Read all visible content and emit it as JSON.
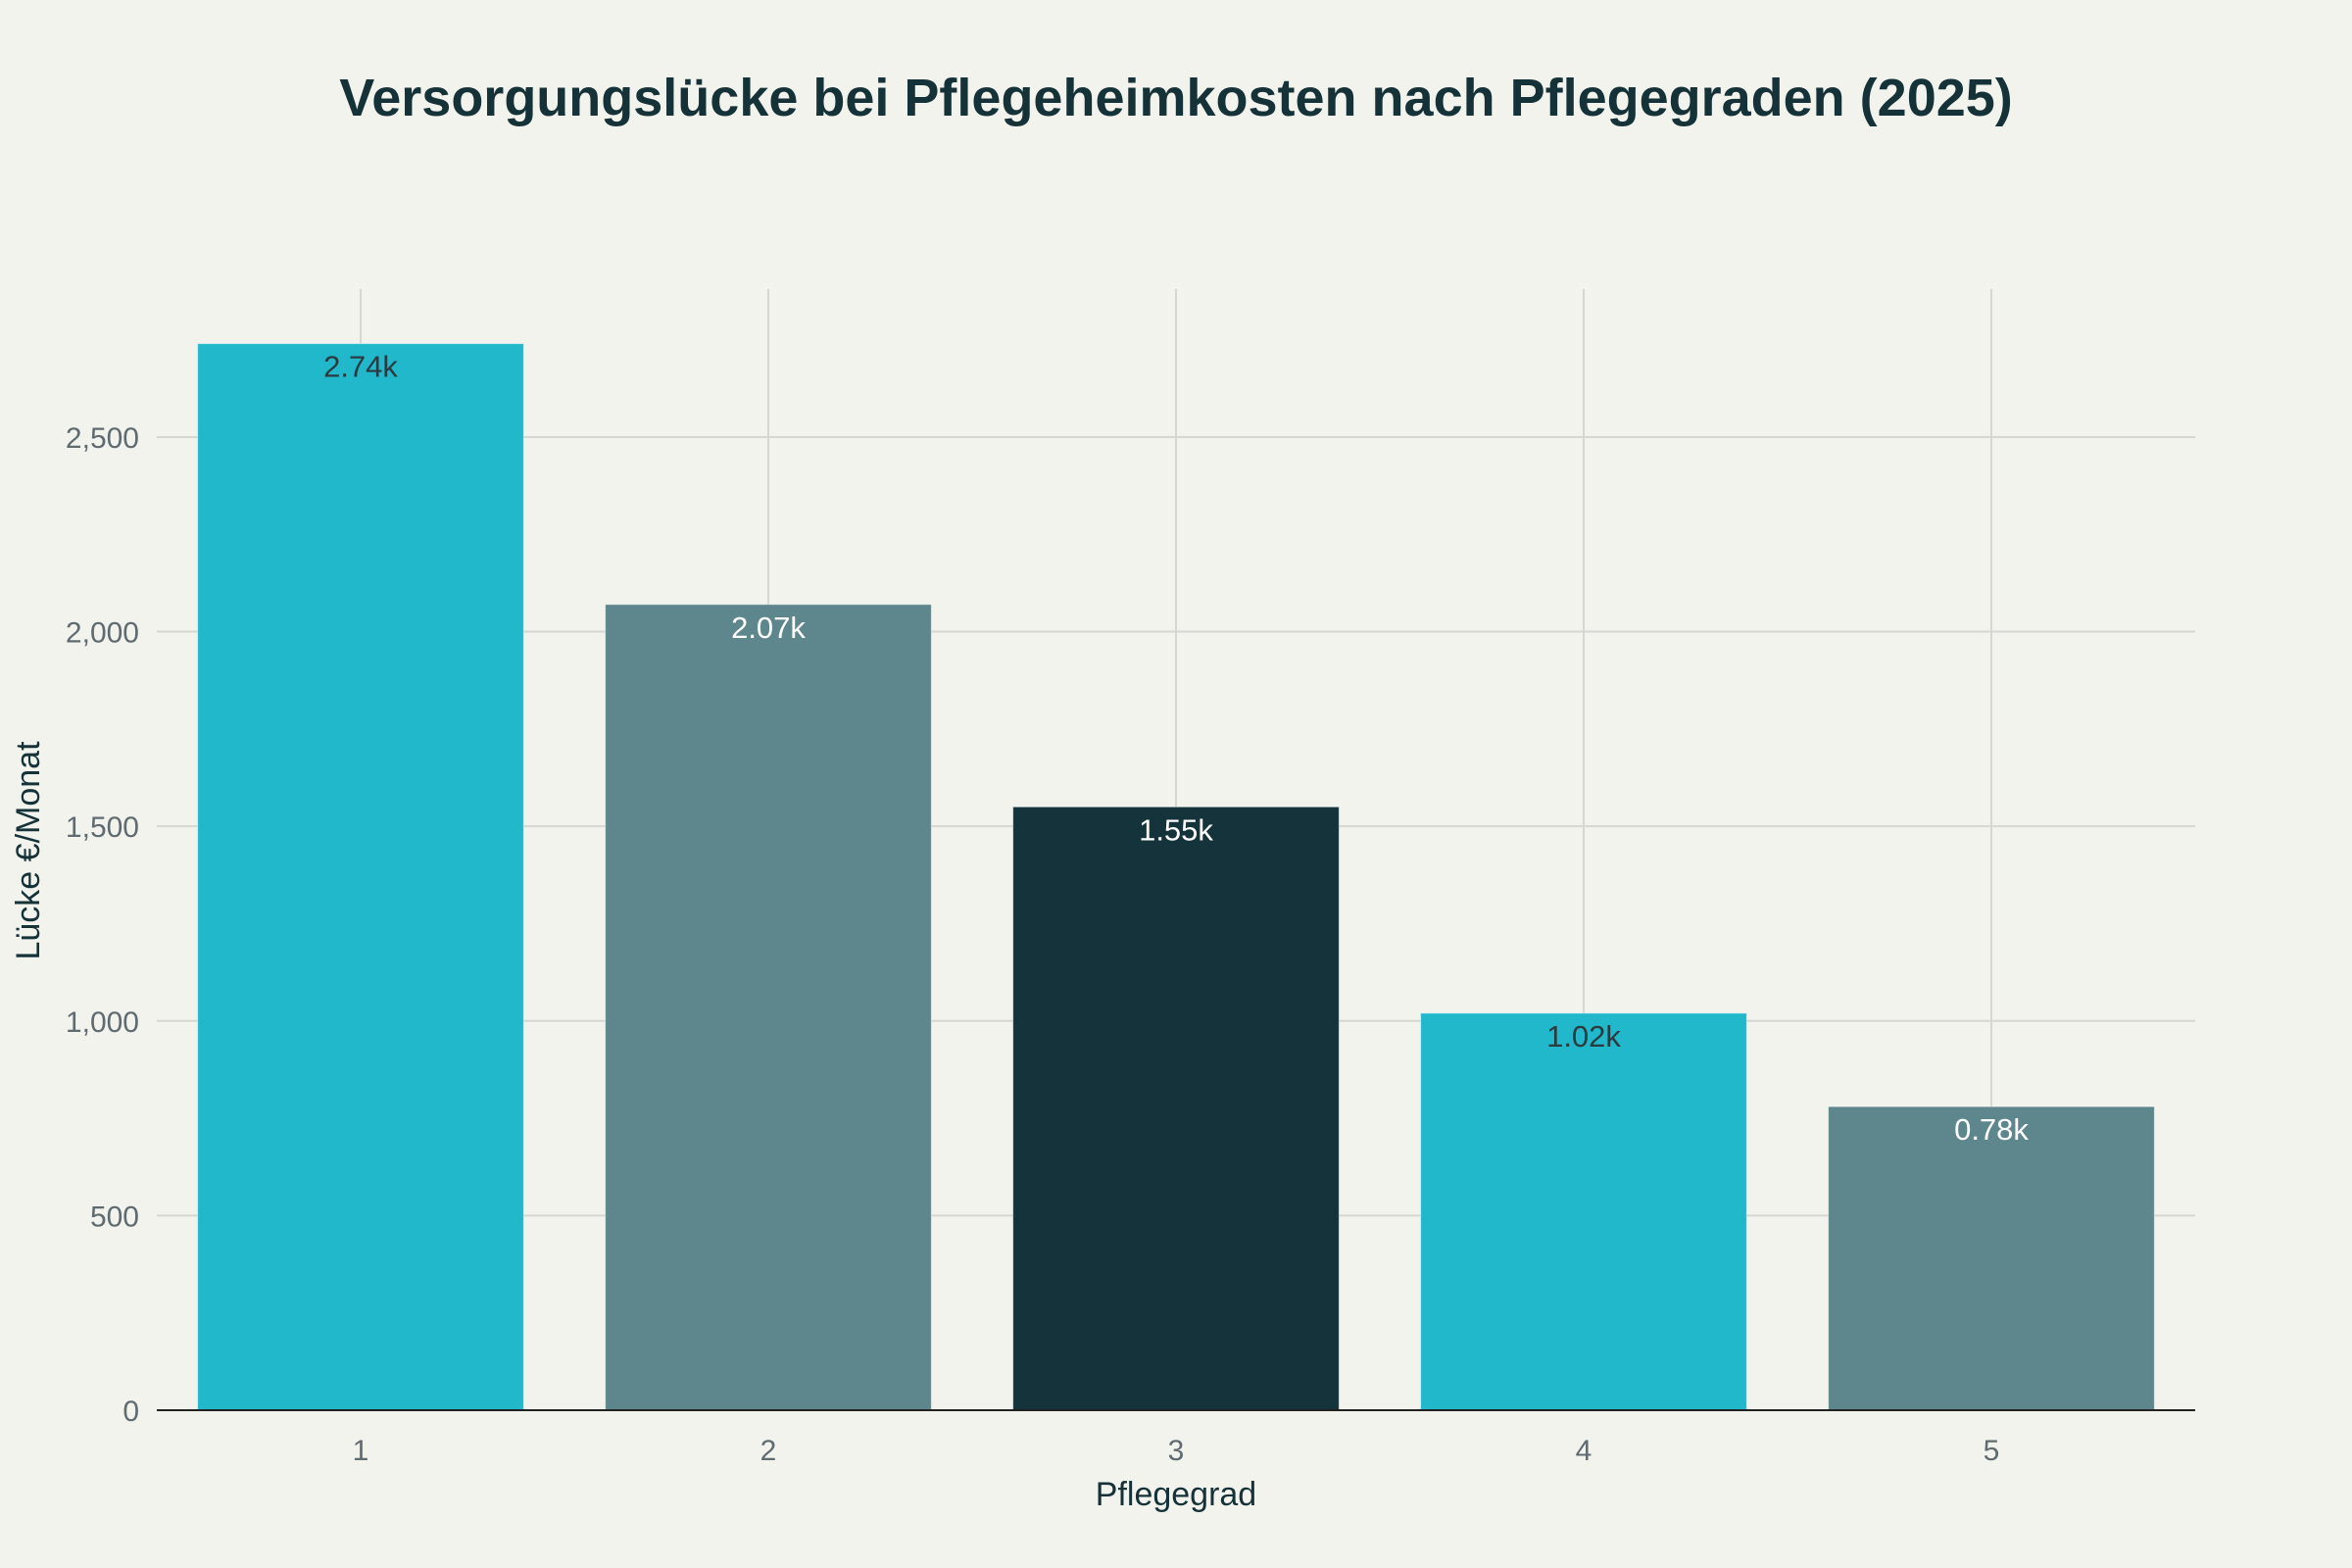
{
  "chart_data": {
    "type": "bar",
    "title": "Versorgungslücke bei Pflegeheimkosten nach Pflegegraden (2025)",
    "xlabel": "Pflegegrad",
    "ylabel": "Lücke €/Monat",
    "categories": [
      "1",
      "2",
      "3",
      "4",
      "5"
    ],
    "values": [
      2740,
      2070,
      1550,
      1020,
      780
    ],
    "data_labels": [
      "2.74k",
      "2.07k",
      "1.55k",
      "1.02k",
      "0.78k"
    ],
    "bar_colors": [
      "#21b8cc",
      "#5e878d",
      "#15333b",
      "#21b8cc",
      "#5e878d"
    ],
    "label_colors": [
      "#2c3a3f",
      "#ffffff",
      "#ffffff",
      "#2c3a3f",
      "#ffffff"
    ],
    "ylim": [
      0,
      2880
    ],
    "yticks": [
      0,
      500,
      1000,
      1500,
      2000,
      2500
    ],
    "ytick_labels": [
      "0",
      "500",
      "1,000",
      "1,500",
      "2,000",
      "2,500"
    ],
    "grid": true,
    "legend": "none"
  },
  "colors": {
    "background": "#f3f3ee",
    "title": "#163239",
    "grid": "#d6d7d2",
    "axis": "#222222",
    "tick_text": "#5f6b70"
  }
}
